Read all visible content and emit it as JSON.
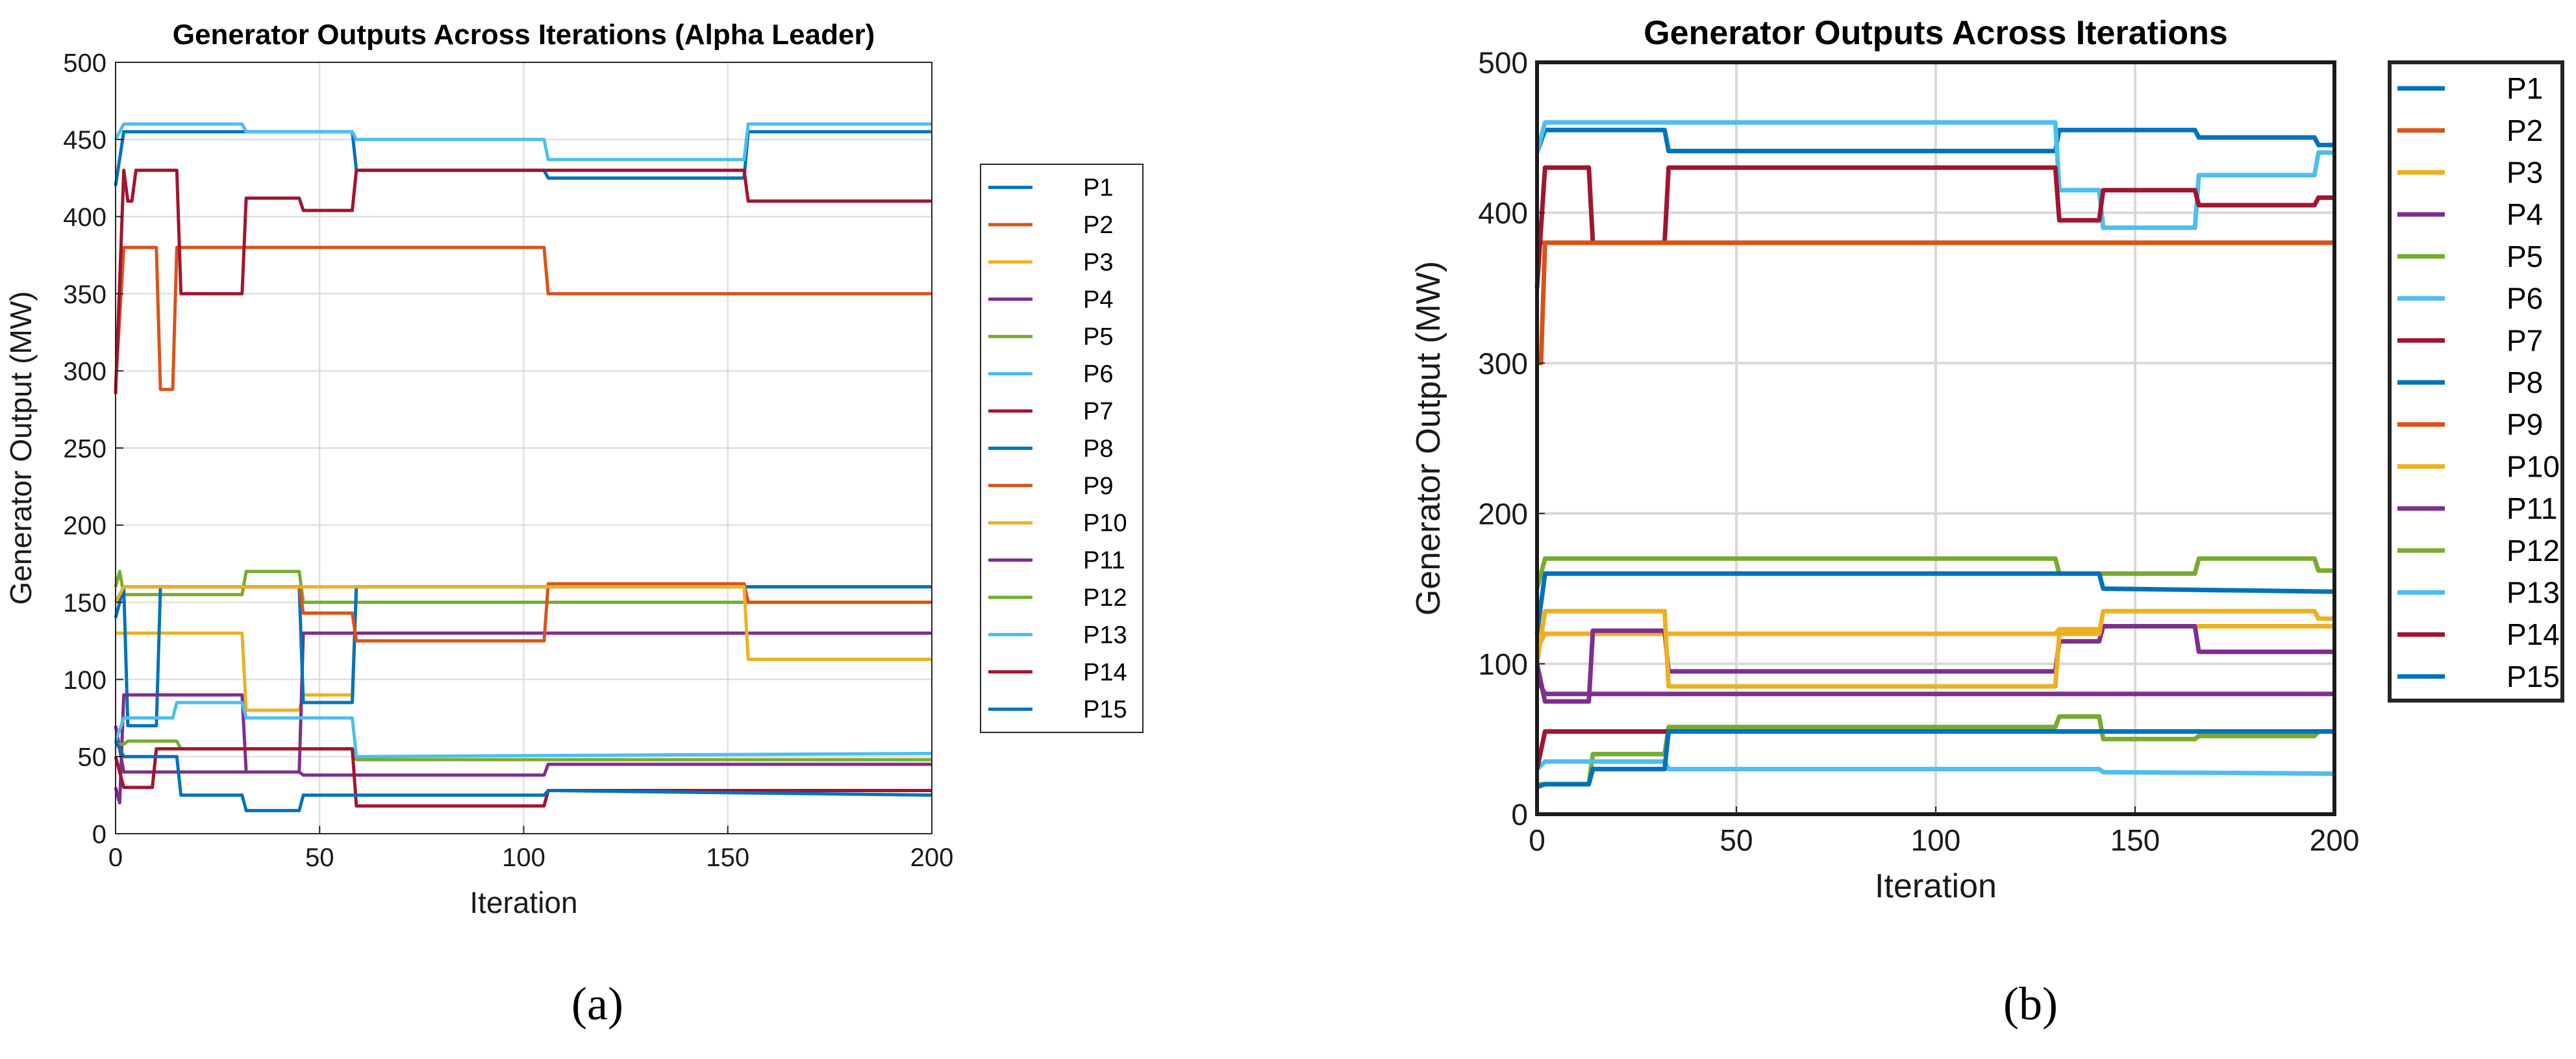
{
  "series_colors": {
    "P1": "#0072BD",
    "P2": "#D95319",
    "P3": "#EDB120",
    "P4": "#7E2F8E",
    "P5": "#77AC30",
    "P6": "#4DBEEE",
    "P7": "#A2142F",
    "P8": "#0072BD",
    "P9": "#D95319",
    "P10": "#EDB120",
    "P11": "#7E2F8E",
    "P12": "#77AC30",
    "P13": "#4DBEEE",
    "P14": "#A2142F",
    "P15": "#0072BD"
  },
  "chart_data": [
    {
      "type": "line",
      "caption": "(a)",
      "title": "Generator Outputs Across Iterations (Alpha Leader)",
      "xlabel": "Iteration",
      "ylabel": "Generator Output (MW)",
      "xlim": [
        0,
        200
      ],
      "ylim": [
        0,
        500
      ],
      "xticks": [
        0,
        50,
        100,
        150,
        200
      ],
      "yticks": [
        0,
        50,
        100,
        150,
        200,
        250,
        300,
        350,
        400,
        450,
        500
      ],
      "grid": true,
      "legend_position": "right",
      "series": [
        {
          "name": "P1",
          "x": [
            0,
            2,
            3,
            58,
            59,
            105,
            106,
            154,
            155,
            200
          ],
          "values": [
            420,
            455,
            455,
            455,
            430,
            430,
            425,
            425,
            455,
            455
          ]
        },
        {
          "name": "P2",
          "x": [
            0,
            2,
            3,
            10,
            11,
            14,
            15,
            105,
            106,
            200
          ],
          "values": [
            290,
            380,
            380,
            380,
            288,
            288,
            380,
            380,
            350,
            350
          ]
        },
        {
          "name": "P3",
          "x": [
            0,
            2,
            3,
            31,
            32,
            45,
            46,
            58,
            59,
            200
          ],
          "values": [
            130,
            130,
            130,
            130,
            80,
            80,
            90,
            90,
            160,
            160
          ]
        },
        {
          "name": "P4",
          "x": [
            0,
            2,
            3,
            45,
            46,
            200
          ],
          "values": [
            70,
            40,
            40,
            40,
            130,
            130
          ]
        },
        {
          "name": "P5",
          "x": [
            0,
            1,
            2,
            3,
            31,
            32,
            45,
            46,
            200
          ],
          "values": [
            160,
            170,
            155,
            155,
            155,
            170,
            170,
            150,
            150
          ]
        },
        {
          "name": "P6",
          "x": [
            0,
            2,
            3,
            31,
            32,
            58,
            59,
            105,
            106,
            154,
            155,
            200
          ],
          "values": [
            450,
            460,
            460,
            460,
            455,
            455,
            450,
            450,
            437,
            437,
            460,
            460
          ]
        },
        {
          "name": "P7",
          "x": [
            0,
            2,
            3,
            4,
            5,
            15,
            16,
            31,
            32,
            45,
            46,
            58,
            59,
            154,
            155,
            200
          ],
          "values": [
            285,
            430,
            410,
            410,
            430,
            430,
            350,
            350,
            412,
            412,
            404,
            404,
            430,
            430,
            410,
            410
          ]
        },
        {
          "name": "P8",
          "x": [
            0,
            2,
            3,
            10,
            11,
            45,
            46,
            58,
            59,
            200
          ],
          "values": [
            140,
            160,
            70,
            70,
            160,
            160,
            85,
            85,
            160,
            160
          ]
        },
        {
          "name": "P9",
          "x": [
            0,
            2,
            3,
            45,
            46,
            58,
            59,
            105,
            106,
            154,
            155,
            200
          ],
          "values": [
            150,
            160,
            160,
            160,
            143,
            143,
            125,
            125,
            162,
            162,
            150,
            150
          ]
        },
        {
          "name": "P10",
          "x": [
            0,
            2,
            3,
            31,
            32,
            154,
            155,
            200
          ],
          "values": [
            150,
            160,
            160,
            160,
            160,
            160,
            113,
            113
          ]
        },
        {
          "name": "P11",
          "x": [
            0,
            1,
            2,
            3,
            14,
            15,
            31,
            32,
            45,
            46,
            105,
            106,
            200
          ],
          "values": [
            30,
            20,
            90,
            90,
            90,
            90,
            90,
            40,
            40,
            38,
            38,
            45,
            45
          ]
        },
        {
          "name": "P12",
          "x": [
            0,
            2,
            3,
            15,
            16,
            58,
            59,
            200
          ],
          "values": [
            58,
            58,
            60,
            60,
            55,
            55,
            48,
            48
          ]
        },
        {
          "name": "P13",
          "x": [
            0,
            2,
            3,
            14,
            15,
            31,
            32,
            58,
            59,
            200
          ],
          "values": [
            60,
            75,
            75,
            75,
            85,
            85,
            75,
            75,
            50,
            52
          ]
        },
        {
          "name": "P14",
          "x": [
            0,
            2,
            3,
            9,
            10,
            58,
            59,
            105,
            106,
            200
          ],
          "values": [
            50,
            30,
            30,
            30,
            55,
            55,
            18,
            18,
            28,
            28
          ]
        },
        {
          "name": "P15",
          "x": [
            0,
            2,
            3,
            15,
            16,
            31,
            32,
            45,
            46,
            105,
            106,
            200
          ],
          "values": [
            60,
            50,
            50,
            50,
            25,
            25,
            15,
            15,
            25,
            25,
            28,
            25
          ]
        }
      ]
    },
    {
      "type": "line",
      "caption": "(b)",
      "title": "Generator Outputs Across Iterations",
      "xlabel": "Iteration",
      "ylabel": "Generator Output (MW)",
      "xlim": [
        0,
        200
      ],
      "ylim": [
        0,
        500
      ],
      "xticks": [
        0,
        50,
        100,
        150,
        200
      ],
      "yticks": [
        0,
        100,
        200,
        300,
        400,
        500
      ],
      "grid": true,
      "legend_position": "right",
      "series": [
        {
          "name": "P1",
          "x": [
            0,
            2,
            3,
            32,
            33,
            130,
            131,
            141,
            142,
            165,
            166,
            195,
            196,
            200
          ],
          "values": [
            440,
            455,
            455,
            455,
            441,
            441,
            455,
            455,
            455,
            455,
            450,
            450,
            445,
            445
          ]
        },
        {
          "name": "P2",
          "x": [
            0,
            2,
            3,
            200
          ],
          "values": [
            380,
            380,
            380,
            380
          ]
        },
        {
          "name": "P3",
          "x": [
            0,
            2,
            3,
            32,
            33,
            130,
            131,
            141,
            142,
            200
          ],
          "values": [
            110,
            120,
            120,
            120,
            120,
            120,
            123,
            123,
            125,
            125
          ]
        },
        {
          "name": "P4",
          "x": [
            0,
            2,
            3,
            13,
            14,
            32,
            33,
            130,
            131,
            141,
            142,
            165,
            166,
            200
          ],
          "values": [
            100,
            75,
            75,
            75,
            122,
            122,
            95,
            95,
            115,
            115,
            125,
            125,
            108,
            108
          ]
        },
        {
          "name": "P5",
          "x": [
            0,
            2,
            3,
            130,
            131,
            141,
            142,
            165,
            166,
            195,
            196,
            200
          ],
          "values": [
            150,
            170,
            170,
            170,
            160,
            160,
            160,
            160,
            170,
            170,
            162,
            162
          ]
        },
        {
          "name": "P6",
          "x": [
            0,
            2,
            3,
            130,
            131,
            141,
            142,
            165,
            166,
            195,
            196,
            200
          ],
          "values": [
            440,
            460,
            460,
            460,
            415,
            415,
            390,
            390,
            425,
            425,
            440,
            440
          ]
        },
        {
          "name": "P7",
          "x": [
            0,
            2,
            3,
            13,
            14,
            32,
            33,
            130,
            131,
            141,
            142,
            165,
            166,
            195,
            196,
            200
          ],
          "values": [
            350,
            430,
            430,
            430,
            380,
            380,
            430,
            430,
            395,
            395,
            415,
            415,
            405,
            405,
            410,
            410
          ]
        },
        {
          "name": "P8",
          "x": [
            0,
            2,
            3,
            130,
            131,
            141,
            142,
            200
          ],
          "values": [
            120,
            160,
            160,
            160,
            160,
            160,
            150,
            148
          ]
        },
        {
          "name": "P9",
          "x": [
            0,
            1,
            2,
            3,
            32,
            33,
            130,
            131,
            141,
            142,
            165,
            166,
            200
          ],
          "values": [
            300,
            300,
            380,
            380,
            380,
            380,
            380,
            380,
            380,
            380,
            380,
            380,
            380
          ]
        },
        {
          "name": "P10",
          "x": [
            0,
            2,
            3,
            32,
            33,
            130,
            131,
            141,
            142,
            195,
            196,
            200
          ],
          "values": [
            100,
            135,
            135,
            135,
            85,
            85,
            120,
            120,
            135,
            135,
            130,
            130
          ]
        },
        {
          "name": "P11",
          "x": [
            0,
            2,
            3,
            200
          ],
          "values": [
            90,
            80,
            80,
            80
          ]
        },
        {
          "name": "P12",
          "x": [
            0,
            2,
            3,
            13,
            14,
            32,
            33,
            130,
            131,
            141,
            142,
            165,
            166,
            195,
            196,
            200
          ],
          "values": [
            20,
            20,
            20,
            20,
            40,
            40,
            58,
            58,
            65,
            65,
            50,
            50,
            52,
            52,
            55,
            55
          ]
        },
        {
          "name": "P13",
          "x": [
            0,
            2,
            3,
            32,
            33,
            130,
            131,
            141,
            142,
            200
          ],
          "values": [
            30,
            35,
            35,
            35,
            30,
            30,
            30,
            30,
            28,
            27
          ]
        },
        {
          "name": "P14",
          "x": [
            0,
            2,
            3,
            32,
            33,
            130,
            131,
            141,
            142,
            200
          ],
          "values": [
            30,
            55,
            55,
            55,
            55,
            55,
            55,
            55,
            55,
            55
          ]
        },
        {
          "name": "P15",
          "x": [
            0,
            2,
            3,
            13,
            14,
            32,
            33,
            130,
            131,
            141,
            142,
            200
          ],
          "values": [
            18,
            20,
            20,
            20,
            30,
            30,
            55,
            55,
            55,
            55,
            55,
            55
          ]
        }
      ]
    }
  ]
}
